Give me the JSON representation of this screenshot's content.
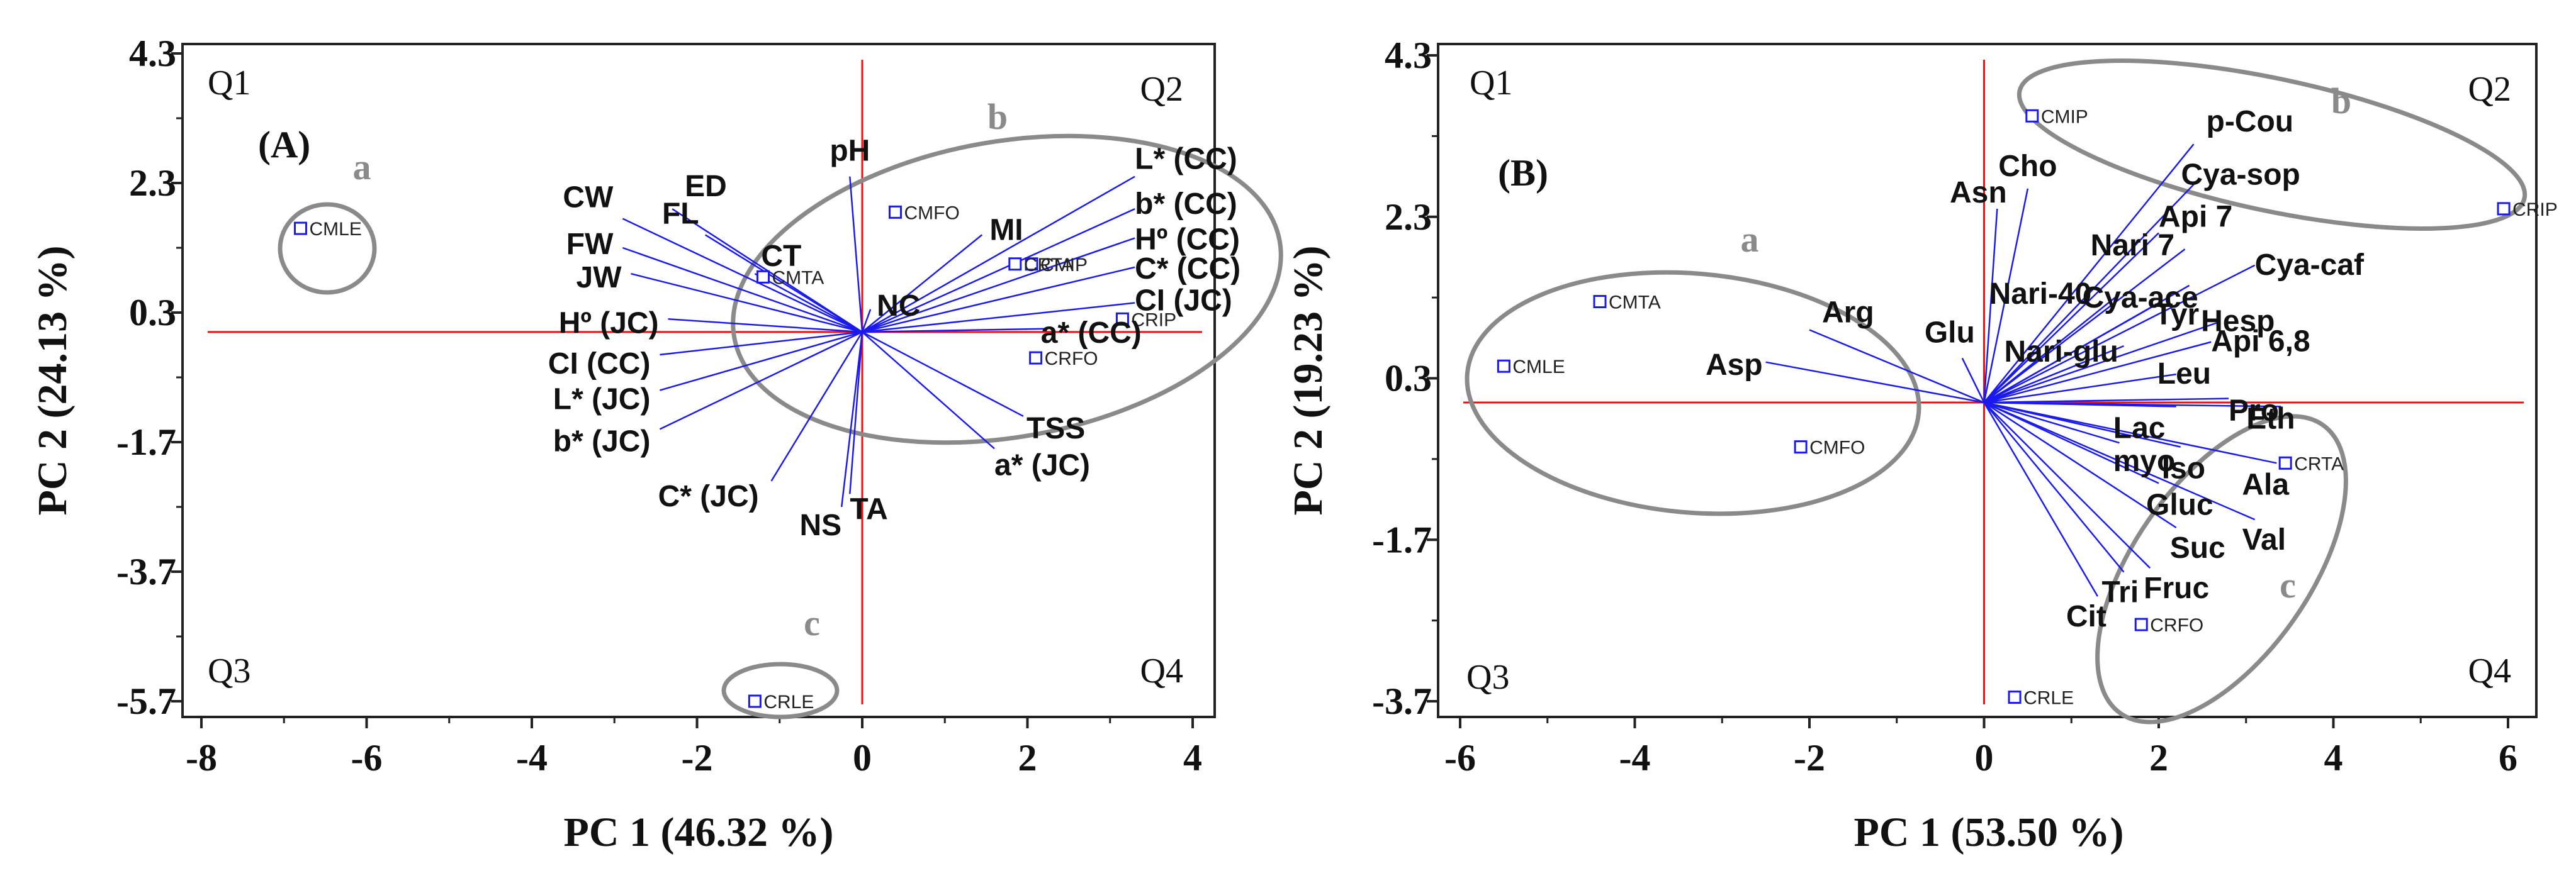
{
  "chart_data": [
    {
      "type": "scatter",
      "subtype": "pca-biplot",
      "panel": "(A)",
      "xlabel": "PC 1 (46.32 %)",
      "ylabel": "PC 2 (24.13 %)",
      "xlim": [
        -8.2,
        4.3
      ],
      "ylim": [
        -6.3,
        4.3
      ],
      "xticks": [
        -8,
        -6,
        -4,
        -2,
        0,
        2,
        4
      ],
      "yticks": [
        4.3,
        2.3,
        0.3,
        -1.7,
        -3.7,
        -5.7
      ],
      "quadrants": [
        "Q1",
        "Q2",
        "Q3",
        "Q4"
      ],
      "loadings": [
        {
          "name": "ED",
          "x": -2.3,
          "y": 1.9
        },
        {
          "name": "CW",
          "x": -2.9,
          "y": 1.75
        },
        {
          "name": "FL",
          "x": -1.9,
          "y": 1.5
        },
        {
          "name": "FW",
          "x": -2.9,
          "y": 1.3
        },
        {
          "name": "JW",
          "x": -2.8,
          "y": 0.9
        },
        {
          "name": "CT",
          "x": -1.3,
          "y": 0.9
        },
        {
          "name": "pH",
          "x": -0.15,
          "y": 2.4
        },
        {
          "name": "MI",
          "x": 1.45,
          "y": 1.5
        },
        {
          "name": "NC",
          "x": 0.1,
          "y": 0.35
        },
        {
          "name": "L* (CC)",
          "x": 3.3,
          "y": 2.4
        },
        {
          "name": "b* (CC)",
          "x": 3.3,
          "y": 1.9
        },
        {
          "name": "Hº (CC)",
          "x": 3.3,
          "y": 1.45
        },
        {
          "name": "C* (CC)",
          "x": 3.3,
          "y": 1.0
        },
        {
          "name": "CI (JC)",
          "x": 3.3,
          "y": 0.45
        },
        {
          "name": "a* (CC)",
          "x": 2.2,
          "y": 0.05
        },
        {
          "name": "Hº (JC)",
          "x": -2.35,
          "y": 0.2
        },
        {
          "name": "CI (CC)",
          "x": -2.45,
          "y": -0.35
        },
        {
          "name": "L* (JC)",
          "x": -2.45,
          "y": -0.9
        },
        {
          "name": "b* (JC)",
          "x": -2.45,
          "y": -1.5
        },
        {
          "name": "C* (JC)",
          "x": -1.1,
          "y": -2.3
        },
        {
          "name": "NS",
          "x": -0.25,
          "y": -2.7
        },
        {
          "name": "TA",
          "x": -0.15,
          "y": -2.5
        },
        {
          "name": "TSS",
          "x": 1.95,
          "y": -1.3
        },
        {
          "name": "a* (JC)",
          "x": 1.6,
          "y": -1.8
        }
      ],
      "scores": [
        {
          "name": "CMLE",
          "x": -6.8,
          "y": 1.6
        },
        {
          "name": "CMTA",
          "x": -1.2,
          "y": 0.85
        },
        {
          "name": "CMFO",
          "x": 0.4,
          "y": 1.85
        },
        {
          "name": "CMIP",
          "x": 2.05,
          "y": 1.05
        },
        {
          "name": "CRTA",
          "x": 1.85,
          "y": 1.05
        },
        {
          "name": "CRIP",
          "x": 3.15,
          "y": 0.2
        },
        {
          "name": "CRFO",
          "x": 2.1,
          "y": -0.4
        },
        {
          "name": "CRLE",
          "x": -1.3,
          "y": -5.7
        }
      ],
      "groups": [
        {
          "label": "a"
        },
        {
          "label": "b"
        },
        {
          "label": "c"
        }
      ]
    },
    {
      "type": "scatter",
      "subtype": "pca-biplot",
      "panel": "(B)",
      "xlabel": "PC 1 (53.50 %)",
      "ylabel": "PC 2 (19.23 %)",
      "xlim": [
        -6.2,
        6.2
      ],
      "ylim": [
        -4.1,
        4.3
      ],
      "xticks": [
        -6,
        -4,
        -2,
        0,
        2,
        4,
        6
      ],
      "yticks": [
        4.3,
        2.3,
        0.3,
        -1.7,
        -3.7
      ],
      "quadrants": [
        "Q1",
        "Q2",
        "Q3",
        "Q4"
      ],
      "loadings": [
        {
          "name": "p-Cou",
          "x": 2.4,
          "y": 3.2
        },
        {
          "name": "Cya-sop",
          "x": 2.4,
          "y": 2.7
        },
        {
          "name": "Api 7",
          "x": 2.0,
          "y": 2.1
        },
        {
          "name": "Cya-caf",
          "x": 3.1,
          "y": 1.7
        },
        {
          "name": "Cho",
          "x": 0.5,
          "y": 2.65
        },
        {
          "name": "Asn",
          "x": 0.15,
          "y": 2.4
        },
        {
          "name": "Nari 7",
          "x": 2.3,
          "y": 1.9
        },
        {
          "name": "Cya-ace",
          "x": 2.35,
          "y": 1.45
        },
        {
          "name": "Nari-40",
          "x": 1.5,
          "y": 1.3
        },
        {
          "name": "Tyr",
          "x": 1.95,
          "y": 1.2
        },
        {
          "name": "Hesp",
          "x": 2.7,
          "y": 1.0
        },
        {
          "name": "Nari-glu",
          "x": 1.6,
          "y": 0.7
        },
        {
          "name": "Api 6,8",
          "x": 2.6,
          "y": 0.75
        },
        {
          "name": "Arg",
          "x": -2.0,
          "y": 0.9
        },
        {
          "name": "Asp",
          "x": -2.5,
          "y": 0.5
        },
        {
          "name": "Glu",
          "x": -0.25,
          "y": 0.55
        },
        {
          "name": "Leu",
          "x": 2.2,
          "y": 0.35
        },
        {
          "name": "Pro",
          "x": 2.8,
          "y": 0.05
        },
        {
          "name": "Eth",
          "x": 3.4,
          "y": -0.05
        },
        {
          "name": "Lac",
          "x": 2.2,
          "y": -0.05
        },
        {
          "name": "myo",
          "x": 1.55,
          "y": -0.5
        },
        {
          "name": "Iso",
          "x": 2.25,
          "y": -0.55
        },
        {
          "name": "Ala",
          "x": 3.35,
          "y": -0.75
        },
        {
          "name": "Gluc",
          "x": 2.0,
          "y": -1.0
        },
        {
          "name": "Val",
          "x": 3.1,
          "y": -1.45
        },
        {
          "name": "Suc",
          "x": 2.2,
          "y": -1.55
        },
        {
          "name": "Fruc",
          "x": 1.9,
          "y": -2.05
        },
        {
          "name": "Tri",
          "x": 1.6,
          "y": -2.1
        },
        {
          "name": "Cit",
          "x": 1.3,
          "y": -2.4
        }
      ],
      "scores": [
        {
          "name": "CMIP",
          "x": 0.55,
          "y": 3.55
        },
        {
          "name": "CRIP",
          "x": 5.95,
          "y": 2.4
        },
        {
          "name": "CMTA",
          "x": -4.4,
          "y": 1.25
        },
        {
          "name": "CMLE",
          "x": -5.5,
          "y": 0.45
        },
        {
          "name": "CMFO",
          "x": -2.1,
          "y": -0.55
        },
        {
          "name": "CRTA",
          "x": 3.45,
          "y": -0.75
        },
        {
          "name": "CRFO",
          "x": 1.8,
          "y": -2.75
        },
        {
          "name": "CRLE",
          "x": 0.35,
          "y": -3.65
        }
      ],
      "groups": [
        {
          "label": "a"
        },
        {
          "label": "b"
        },
        {
          "label": "c"
        }
      ]
    }
  ]
}
